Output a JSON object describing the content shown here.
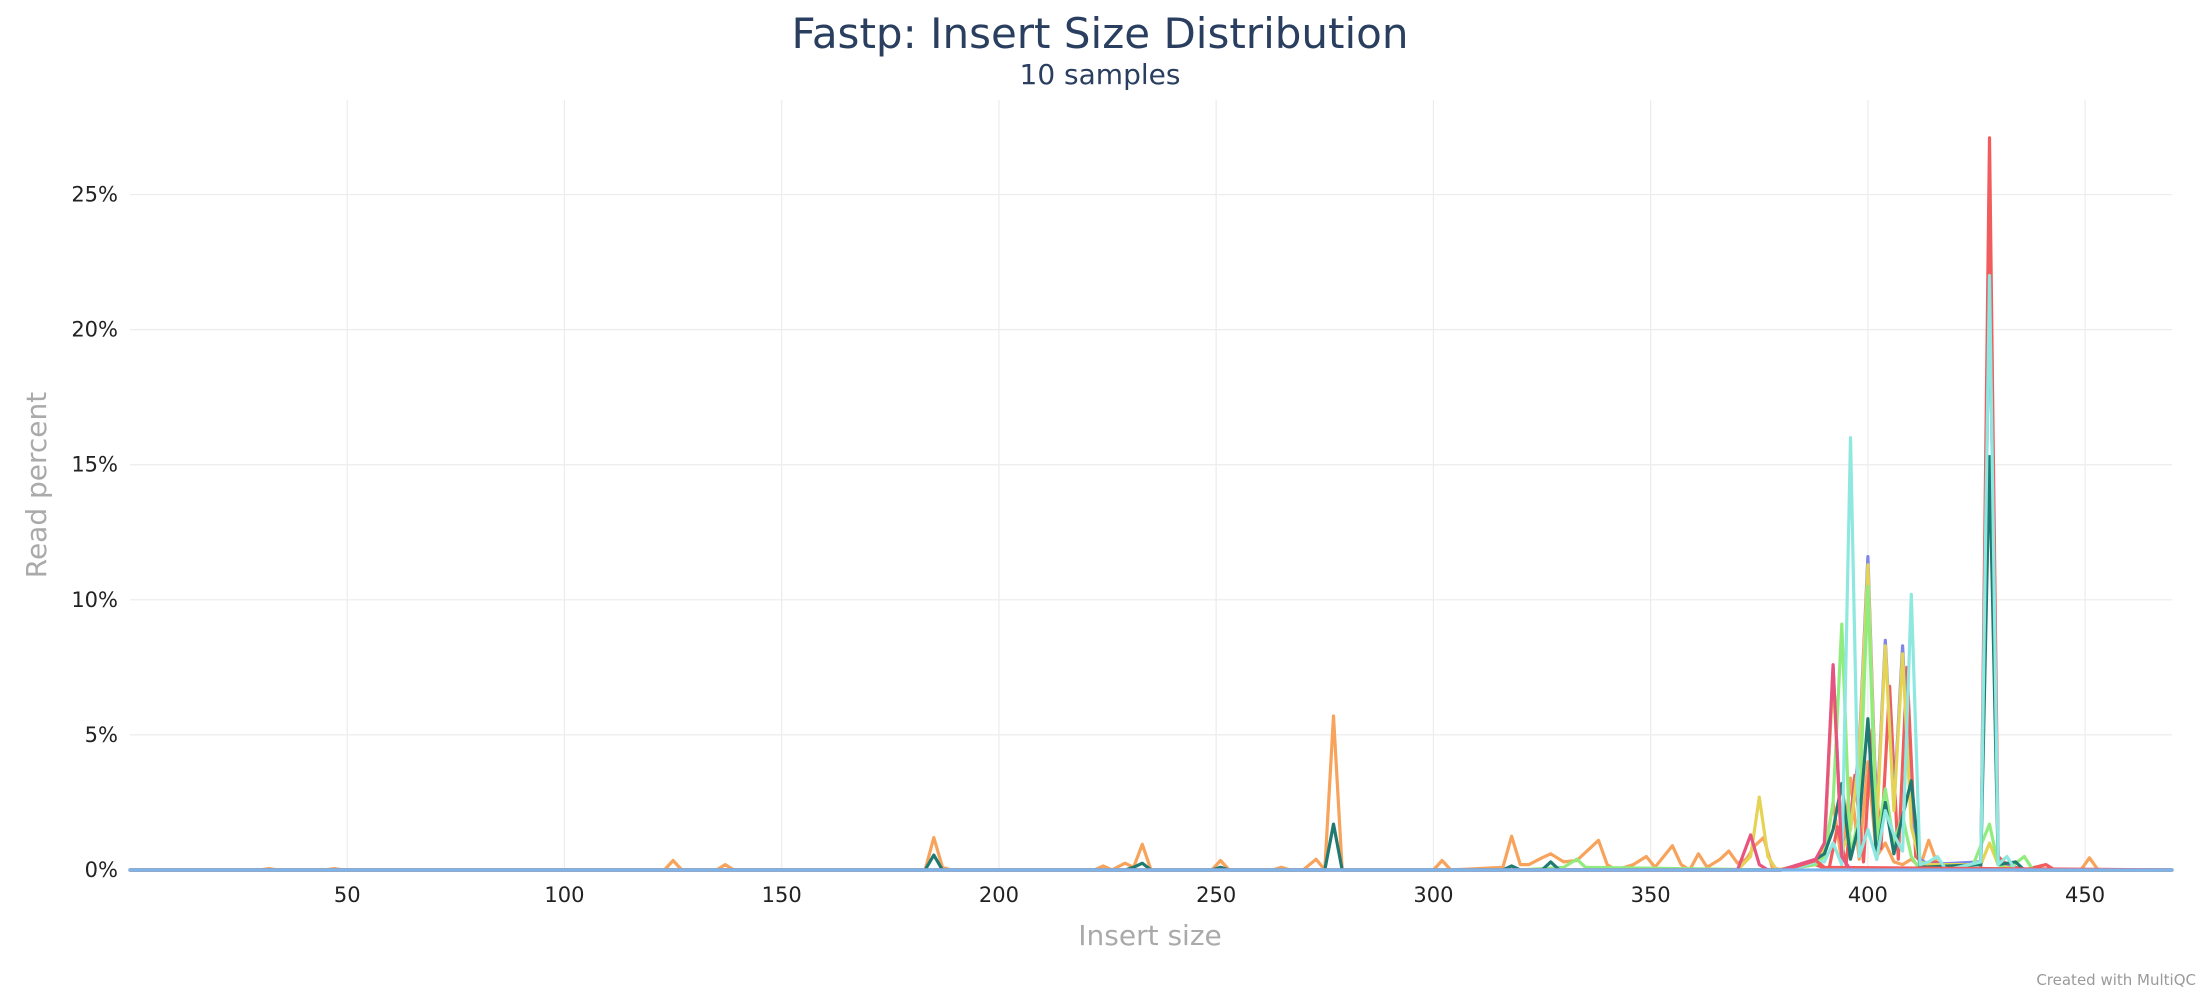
{
  "chart_data": {
    "type": "line",
    "title": "Fastp: Insert Size Distribution",
    "subtitle": "10 samples",
    "xlabel": "Insert size",
    "ylabel": "Read percent",
    "xlim": [
      0,
      470
    ],
    "ylim": [
      0,
      28.5
    ],
    "x_ticks": [
      50,
      100,
      150,
      200,
      250,
      300,
      350,
      400,
      450
    ],
    "y_ticks": [
      0,
      5,
      10,
      15,
      20,
      25
    ],
    "y_tick_labels": [
      "0%",
      "5%",
      "10%",
      "15%",
      "20%",
      "25%"
    ],
    "grid": true,
    "legend": "none",
    "credit": "Created with MultiQC",
    "series": [
      {
        "color": "#f7a35c",
        "points": [
          [
            0,
            0
          ],
          [
            30,
            0
          ],
          [
            32,
            0.05
          ],
          [
            34,
            0
          ],
          [
            45,
            0
          ],
          [
            47,
            0.05
          ],
          [
            49,
            0
          ],
          [
            123,
            0
          ],
          [
            125,
            0.35
          ],
          [
            127,
            0
          ],
          [
            135,
            0
          ],
          [
            137,
            0.2
          ],
          [
            139,
            0
          ],
          [
            183,
            0
          ],
          [
            185,
            1.2
          ],
          [
            187,
            0.1
          ],
          [
            189,
            0
          ],
          [
            222,
            0
          ],
          [
            224,
            0.15
          ],
          [
            226,
            0
          ],
          [
            229,
            0.25
          ],
          [
            231,
            0.1
          ],
          [
            233,
            0.95
          ],
          [
            235,
            0
          ],
          [
            249,
            0
          ],
          [
            251,
            0.35
          ],
          [
            253,
            0
          ],
          [
            263,
            0
          ],
          [
            265,
            0.1
          ],
          [
            267,
            0
          ],
          [
            270,
            0
          ],
          [
            273,
            0.4
          ],
          [
            275,
            0
          ],
          [
            277,
            5.7
          ],
          [
            279,
            0
          ],
          [
            300,
            0
          ],
          [
            302,
            0.35
          ],
          [
            304,
            0
          ],
          [
            316,
            0.1
          ],
          [
            318,
            1.25
          ],
          [
            320,
            0.2
          ],
          [
            322,
            0.2
          ],
          [
            325,
            0.45
          ],
          [
            327,
            0.6
          ],
          [
            330,
            0.3
          ],
          [
            333,
            0.35
          ],
          [
            336,
            0.8
          ],
          [
            338,
            1.1
          ],
          [
            340,
            0.2
          ],
          [
            342,
            0
          ],
          [
            346,
            0.2
          ],
          [
            349,
            0.5
          ],
          [
            351,
            0.1
          ],
          [
            353,
            0.5
          ],
          [
            355,
            0.9
          ],
          [
            357,
            0.2
          ],
          [
            359,
            0
          ],
          [
            361,
            0.6
          ],
          [
            363,
            0.1
          ],
          [
            366,
            0.4
          ],
          [
            368,
            0.7
          ],
          [
            370,
            0.25
          ],
          [
            372,
            0.4
          ],
          [
            374,
            0.9
          ],
          [
            376,
            1.2
          ],
          [
            378,
            0.1
          ],
          [
            380,
            0
          ],
          [
            386,
            0.2
          ],
          [
            390,
            0.5
          ],
          [
            392,
            2.5
          ],
          [
            394,
            0.3
          ],
          [
            396,
            3.4
          ],
          [
            398,
            0.4
          ],
          [
            400,
            4.0
          ],
          [
            402,
            0.5
          ],
          [
            404,
            1.0
          ],
          [
            406,
            0.3
          ],
          [
            408,
            0.2
          ],
          [
            410,
            0.4
          ],
          [
            412,
            0.1
          ],
          [
            414,
            1.1
          ],
          [
            416,
            0.2
          ],
          [
            418,
            0
          ],
          [
            449,
            0
          ],
          [
            451,
            0.45
          ],
          [
            453,
            0
          ],
          [
            470,
            0
          ]
        ]
      },
      {
        "color": "#f15c5c",
        "points": [
          [
            0,
            0
          ],
          [
            300,
            0
          ],
          [
            380,
            0
          ],
          [
            384,
            0.1
          ],
          [
            388,
            0.2
          ],
          [
            391,
            0
          ],
          [
            393,
            1.6
          ],
          [
            395,
            0.2
          ],
          [
            397,
            3.5
          ],
          [
            399,
            0.3
          ],
          [
            401,
            5.2
          ],
          [
            403,
            0.8
          ],
          [
            405,
            6.8
          ],
          [
            407,
            0.4
          ],
          [
            409,
            7.5
          ],
          [
            411,
            0.5
          ],
          [
            413,
            0.2
          ],
          [
            415,
            0.3
          ],
          [
            426,
            0
          ],
          [
            428,
            27.1
          ],
          [
            430,
            0.5
          ],
          [
            432,
            0.2
          ],
          [
            436,
            0
          ],
          [
            441,
            0.2
          ],
          [
            443,
            0
          ],
          [
            470,
            0
          ]
        ]
      },
      {
        "color": "#8085e9",
        "points": [
          [
            0,
            0
          ],
          [
            300,
            0
          ],
          [
            380,
            0
          ],
          [
            388,
            0.3
          ],
          [
            390,
            0.6
          ],
          [
            392,
            7.5
          ],
          [
            394,
            0.8
          ],
          [
            396,
            1.5
          ],
          [
            398,
            4.5
          ],
          [
            400,
            11.6
          ],
          [
            402,
            1.8
          ],
          [
            404,
            8.5
          ],
          [
            406,
            2.4
          ],
          [
            408,
            8.3
          ],
          [
            410,
            1.8
          ],
          [
            412,
            0.4
          ],
          [
            414,
            0.2
          ],
          [
            426,
            0.3
          ],
          [
            428,
            21.9
          ],
          [
            430,
            0.3
          ],
          [
            434,
            0
          ],
          [
            470,
            0
          ]
        ]
      },
      {
        "color": "#e4d354",
        "points": [
          [
            0,
            0
          ],
          [
            300,
            0
          ],
          [
            370,
            0
          ],
          [
            373,
            0.5
          ],
          [
            375,
            2.7
          ],
          [
            377,
            0.5
          ],
          [
            379,
            0
          ],
          [
            388,
            0.3
          ],
          [
            390,
            0.8
          ],
          [
            392,
            7.2
          ],
          [
            394,
            0.7
          ],
          [
            396,
            1.5
          ],
          [
            398,
            4.2
          ],
          [
            400,
            11.3
          ],
          [
            402,
            1.5
          ],
          [
            404,
            8.3
          ],
          [
            406,
            2.2
          ],
          [
            408,
            8.0
          ],
          [
            410,
            1.6
          ],
          [
            412,
            0.3
          ],
          [
            414,
            0.2
          ],
          [
            426,
            0.2
          ],
          [
            428,
            1.0
          ],
          [
            430,
            0.2
          ],
          [
            434,
            0
          ],
          [
            470,
            0
          ]
        ]
      },
      {
        "color": "#90ed7d",
        "points": [
          [
            0,
            0
          ],
          [
            320,
            0
          ],
          [
            330,
            0.1
          ],
          [
            333,
            0.4
          ],
          [
            335,
            0.1
          ],
          [
            380,
            0
          ],
          [
            388,
            0.2
          ],
          [
            390,
            0.5
          ],
          [
            392,
            2.5
          ],
          [
            394,
            9.1
          ],
          [
            396,
            0.5
          ],
          [
            398,
            2.0
          ],
          [
            400,
            10.5
          ],
          [
            402,
            1.0
          ],
          [
            404,
            3.0
          ],
          [
            406,
            1.0
          ],
          [
            408,
            2.0
          ],
          [
            410,
            0.5
          ],
          [
            412,
            0
          ],
          [
            424,
            0.1
          ],
          [
            426,
            0.9
          ],
          [
            428,
            1.7
          ],
          [
            430,
            0.2
          ],
          [
            432,
            0
          ],
          [
            436,
            0.5
          ],
          [
            438,
            0
          ],
          [
            470,
            0
          ]
        ]
      },
      {
        "color": "#1f7a72",
        "points": [
          [
            0,
            0
          ],
          [
            183,
            0
          ],
          [
            185,
            0.55
          ],
          [
            187,
            0
          ],
          [
            229,
            0
          ],
          [
            231,
            0.1
          ],
          [
            233,
            0.25
          ],
          [
            235,
            0
          ],
          [
            249,
            0
          ],
          [
            251,
            0.1
          ],
          [
            253,
            0
          ],
          [
            275,
            0
          ],
          [
            277,
            1.7
          ],
          [
            279,
            0
          ],
          [
            316,
            0
          ],
          [
            318,
            0.15
          ],
          [
            320,
            0
          ],
          [
            325,
            0
          ],
          [
            327,
            0.3
          ],
          [
            329,
            0
          ],
          [
            380,
            0
          ],
          [
            386,
            0.2
          ],
          [
            390,
            0.6
          ],
          [
            392,
            1.5
          ],
          [
            394,
            3.2
          ],
          [
            396,
            0.4
          ],
          [
            398,
            1.7
          ],
          [
            400,
            5.6
          ],
          [
            402,
            0.4
          ],
          [
            404,
            2.5
          ],
          [
            406,
            0.6
          ],
          [
            408,
            2.0
          ],
          [
            410,
            3.3
          ],
          [
            412,
            0.1
          ],
          [
            426,
            0.2
          ],
          [
            428,
            15.3
          ],
          [
            430,
            0.2
          ],
          [
            434,
            0.3
          ],
          [
            436,
            0
          ],
          [
            470,
            0
          ]
        ]
      },
      {
        "color": "#8ee8e0",
        "points": [
          [
            0,
            0
          ],
          [
            380,
            0
          ],
          [
            384,
            0.1
          ],
          [
            388,
            0.3
          ],
          [
            390,
            0.3
          ],
          [
            392,
            1.0
          ],
          [
            394,
            0.2
          ],
          [
            396,
            16.0
          ],
          [
            398,
            0.5
          ],
          [
            400,
            1.5
          ],
          [
            402,
            0.4
          ],
          [
            404,
            2.2
          ],
          [
            406,
            1.3
          ],
          [
            408,
            0.7
          ],
          [
            410,
            10.2
          ],
          [
            412,
            0.2
          ],
          [
            414,
            0.3
          ],
          [
            416,
            0.5
          ],
          [
            418,
            0
          ],
          [
            426,
            0.3
          ],
          [
            428,
            22.0
          ],
          [
            430,
            0.2
          ],
          [
            432,
            0.5
          ],
          [
            434,
            0
          ],
          [
            470,
            0
          ]
        ]
      },
      {
        "color": "#f45b5b",
        "points": [
          [
            0,
            0
          ],
          [
            380,
            0
          ],
          [
            384,
            0.15
          ],
          [
            388,
            0.35
          ],
          [
            390,
            0.1
          ],
          [
            470,
            0
          ]
        ]
      },
      {
        "color": "#e75480",
        "points": [
          [
            0,
            0
          ],
          [
            370,
            0
          ],
          [
            373,
            1.3
          ],
          [
            375,
            0.2
          ],
          [
            377,
            0
          ],
          [
            380,
            0
          ],
          [
            388,
            0.4
          ],
          [
            390,
            1.0
          ],
          [
            392,
            7.6
          ],
          [
            394,
            0.5
          ],
          [
            396,
            0
          ],
          [
            470,
            0
          ]
        ]
      },
      {
        "color": "#7cb5ec",
        "points": [
          [
            0,
            0
          ],
          [
            470,
            0
          ]
        ]
      }
    ]
  }
}
